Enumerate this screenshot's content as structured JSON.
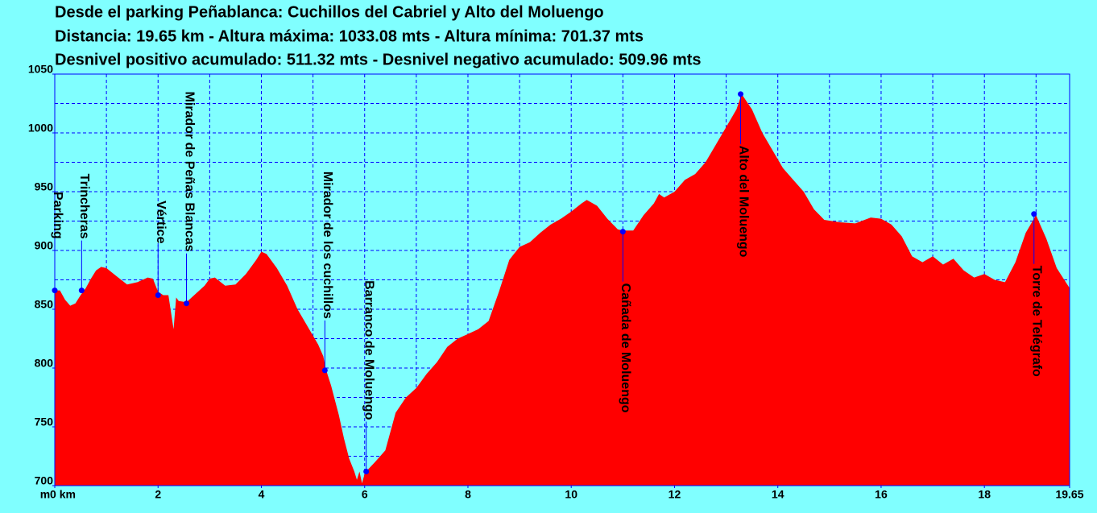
{
  "chart_data": {
    "type": "area",
    "title": "Desde el parking Peñablanca:  Cuchillos del Cabriel y Alto del Moluengo",
    "subtitle": "Distancia: 19.65 km - Altura máxima: 1033.08 mts - Altura mínima: 701.37 mts",
    "subtitle2": "Desnivel positivo acumulado: 511.32 mts - Desnivel negativo acumulado: 509.96 mts",
    "y_unit": "m",
    "xlim": [
      0,
      19.65
    ],
    "ylim": [
      700,
      1050
    ],
    "xticks": [
      {
        "value": 0,
        "label": "0 km"
      },
      2,
      4,
      6,
      8,
      10,
      12,
      14,
      16,
      18,
      19.65
    ],
    "yticks": [
      700,
      750,
      800,
      850,
      900,
      950,
      1000,
      1050
    ],
    "xgrid": [
      1,
      2,
      3,
      4,
      5,
      6,
      7,
      8,
      9,
      10,
      11,
      12,
      13,
      14,
      15,
      16,
      17,
      18,
      19
    ],
    "ygrid": [
      725,
      750,
      775,
      800,
      825,
      850,
      875,
      900,
      925,
      950,
      975,
      1000,
      1025
    ],
    "grid": true,
    "background": "#80ffff",
    "frame_color": "#0000ff",
    "x": [
      0,
      0.1,
      0.2,
      0.3,
      0.4,
      0.5,
      0.6,
      0.7,
      0.8,
      0.9,
      1.0,
      1.2,
      1.4,
      1.6,
      1.8,
      1.9,
      2.0,
      2.1,
      2.2,
      2.3,
      2.35,
      2.4,
      2.55,
      2.7,
      2.9,
      3.0,
      3.1,
      3.3,
      3.5,
      3.7,
      3.9,
      4.0,
      4.1,
      4.3,
      4.5,
      4.7,
      4.9,
      5.1,
      5.2,
      5.25,
      5.35,
      5.5,
      5.6,
      5.7,
      5.8,
      5.85,
      5.9,
      5.95,
      6.0,
      6.05,
      6.2,
      6.4,
      6.6,
      6.8,
      7.0,
      7.2,
      7.4,
      7.6,
      7.8,
      8.0,
      8.2,
      8.4,
      8.6,
      8.8,
      9.0,
      9.2,
      9.4,
      9.6,
      9.8,
      10.0,
      10.2,
      10.3,
      10.5,
      10.7,
      10.9,
      11.0,
      11.2,
      11.4,
      11.6,
      11.7,
      11.8,
      12.0,
      12.2,
      12.4,
      12.6,
      12.8,
      13.0,
      13.2,
      13.3,
      13.5,
      13.7,
      13.9,
      14.1,
      14.3,
      14.5,
      14.7,
      14.9,
      15.2,
      15.5,
      15.8,
      16.0,
      16.2,
      16.4,
      16.6,
      16.8,
      17.0,
      17.2,
      17.4,
      17.6,
      17.8,
      18.0,
      18.2,
      18.4,
      18.6,
      18.8,
      19.0,
      19.2,
      19.4,
      19.65
    ],
    "series": [
      {
        "color": "#ff0000",
        "values": [
          866,
          866,
          858,
          853,
          855,
          862,
          868,
          876,
          883,
          886,
          885,
          878,
          871,
          873,
          877,
          876,
          865,
          862,
          862,
          833,
          860,
          857,
          856,
          862,
          870,
          876,
          877,
          870,
          871,
          880,
          892,
          899,
          897,
          885,
          870,
          850,
          835,
          820,
          810,
          799,
          785,
          760,
          740,
          723,
          712,
          705,
          712,
          702,
          710,
          713,
          720,
          730,
          762,
          775,
          783,
          795,
          805,
          818,
          825,
          829,
          833,
          840,
          865,
          892,
          903,
          907,
          915,
          922,
          927,
          933,
          940,
          943,
          938,
          927,
          918,
          917,
          917,
          930,
          940,
          948,
          945,
          950,
          960,
          965,
          975,
          990,
          1005,
          1020,
          1033,
          1020,
          1000,
          985,
          970,
          960,
          950,
          935,
          926,
          924,
          923,
          928,
          927,
          922,
          912,
          895,
          890,
          895,
          888,
          893,
          883,
          877,
          880,
          875,
          873,
          890,
          915,
          930,
          910,
          885,
          868
        ]
      }
    ],
    "points": [
      {
        "label": "Parking",
        "x": 0,
        "y": 866,
        "position": "above"
      },
      {
        "label": "Trincheras",
        "x": 0.52,
        "y": 866,
        "position": "above"
      },
      {
        "label": "Vértice",
        "x": 2.0,
        "y": 862,
        "position": "above"
      },
      {
        "label": "Mirador de Peñas Blancas",
        "x": 2.55,
        "y": 855,
        "position": "above"
      },
      {
        "label": "Mirador de los cuchillos",
        "x": 5.23,
        "y": 798,
        "position": "above"
      },
      {
        "label": "Barranco de Moluengo",
        "x": 6.03,
        "y": 712,
        "position": "above"
      },
      {
        "label": "Cañada de Moluengo",
        "x": 11.0,
        "y": 916,
        "position": "below"
      },
      {
        "label": "Alto del Moluengo",
        "x": 13.28,
        "y": 1033,
        "position": "below"
      },
      {
        "label": "Torre de Telégrafo",
        "x": 18.96,
        "y": 931,
        "position": "below"
      }
    ],
    "point_color": "#0000ff"
  }
}
